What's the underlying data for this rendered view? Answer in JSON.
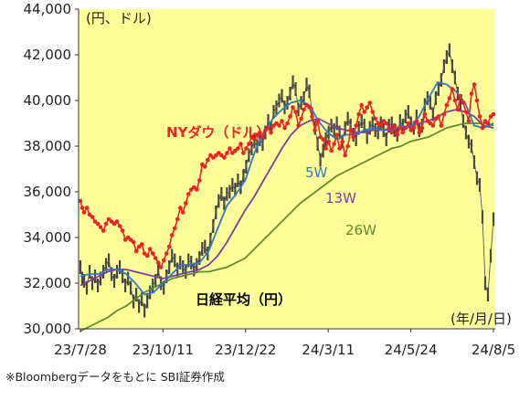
{
  "chart_data": {
    "type": "line",
    "title": "",
    "xlabel": "(年/月/日)",
    "ylabel": "(円、ドル)",
    "ylim": [
      30000,
      44000
    ],
    "yticks": [
      "30,000",
      "32,000",
      "34,000",
      "36,000",
      "38,000",
      "40,000",
      "42,000",
      "44,000"
    ],
    "xticks": [
      "23/7/28",
      "23/10/11",
      "23/12/22",
      "24/3/11",
      "24/5/24",
      "24/8/5"
    ],
    "background": "#ffff99",
    "grid": false,
    "annotations": {
      "nydow": "NYダウ（ドル）",
      "nikkei": "日経平均（円）",
      "w5": "5W",
      "w13": "13W",
      "w26": "26W"
    },
    "series": [
      {
        "name": "NYダウ（ドル）",
        "color": "#ee2222",
        "x": [
          0,
          2,
          4,
          7,
          10,
          13,
          16,
          19,
          22,
          25,
          28,
          31,
          34,
          37,
          40,
          43,
          46,
          49,
          52,
          55,
          58,
          61,
          64,
          67,
          70,
          73,
          76,
          79,
          82,
          85,
          88,
          91,
          94,
          97,
          100,
          103,
          106,
          109,
          112,
          115,
          118,
          121,
          124,
          127,
          130,
          133,
          136,
          139,
          142,
          145,
          148,
          151,
          154,
          157,
          160,
          163,
          166,
          169,
          172,
          175,
          178,
          181,
          184,
          187,
          190,
          193,
          196,
          199,
          202,
          205,
          208,
          211,
          214,
          217,
          220,
          223,
          226,
          229,
          232,
          235,
          238,
          241,
          244,
          247,
          250,
          253,
          256,
          259,
          262,
          265,
          268,
          271,
          274,
          277,
          280,
          283,
          286,
          289,
          292,
          295,
          298,
          301,
          304,
          307,
          310,
          313,
          316,
          319,
          322,
          325,
          328,
          331,
          334,
          337,
          340,
          343,
          346,
          349,
          352,
          355,
          358,
          361,
          364,
          367,
          370,
          373,
          376,
          379,
          382,
          385,
          388,
          391,
          394,
          397,
          400,
          403,
          406,
          409,
          412,
          415,
          418,
          421,
          424,
          427,
          430,
          433,
          436,
          439,
          442,
          445,
          448,
          451
        ],
        "values": [
          35600,
          35300,
          35100,
          35300,
          35000,
          34900,
          34700,
          34600,
          34450,
          34300,
          34600,
          34800,
          34700,
          34600,
          34700,
          34500,
          34300,
          33900,
          34000,
          33900,
          33800,
          33400,
          33600,
          33700,
          33300,
          33200,
          33500,
          33300,
          33100,
          32900,
          32700,
          33000,
          33300,
          33600,
          34100,
          34400,
          34800,
          35300,
          35100,
          35500,
          35900,
          36100,
          36200,
          36100,
          36500,
          37200,
          37100,
          37400,
          37600,
          37500,
          37600,
          37700,
          37600,
          37500,
          37700,
          37900,
          37700,
          37800,
          37900,
          38100,
          37700,
          37900,
          38100,
          38400,
          38300,
          38500,
          38600,
          38400,
          38700,
          38800,
          38600,
          38900,
          39000,
          38900,
          39100,
          38800,
          39000,
          39300,
          39700,
          39500,
          38900,
          39200,
          39600,
          39800,
          39700,
          39300,
          38700,
          39100,
          38400,
          38300,
          37900,
          38200,
          37800,
          38100,
          38500,
          37900,
          38200,
          37600,
          38000,
          38700,
          38400,
          38900,
          39400,
          39800,
          39500,
          39700,
          39900,
          39500,
          39200,
          39000,
          38900,
          39100,
          39000,
          38800,
          38600,
          38900,
          38500,
          38800,
          38600,
          38800,
          39000,
          38700,
          38800,
          39100,
          38600,
          38800,
          39400,
          39100,
          39000,
          38900,
          39200,
          39300,
          38900,
          39400,
          39800,
          40100,
          40500,
          40000,
          39600,
          40200,
          39900,
          39500,
          39100,
          40300,
          40700,
          40000,
          39300,
          38800,
          39100,
          39000,
          39300,
          39400
        ]
      },
      {
        "name": "日経平均（円）",
        "color": "#333333",
        "x": [
          0,
          2,
          4,
          7,
          10,
          13,
          16,
          19,
          22,
          25,
          28,
          31,
          34,
          37,
          40,
          43,
          46,
          49,
          52,
          55,
          58,
          61,
          64,
          67,
          70,
          73,
          76,
          79,
          82,
          85,
          88,
          91,
          94,
          97,
          100,
          103,
          106,
          109,
          112,
          115,
          118,
          121,
          124,
          127,
          130,
          133,
          136,
          139,
          142,
          145,
          148,
          151,
          154,
          157,
          160,
          163,
          166,
          169,
          172,
          175,
          178,
          181,
          184,
          187,
          190,
          193,
          196,
          199,
          202,
          205,
          208,
          211,
          214,
          217,
          220,
          223,
          226,
          229,
          232,
          235,
          238,
          241,
          244,
          247,
          250,
          253,
          256,
          259,
          262,
          265,
          268,
          271,
          274,
          277,
          280,
          283,
          286,
          289,
          292,
          295,
          298,
          301,
          304,
          307,
          310,
          313,
          316,
          319,
          322,
          325,
          328,
          331,
          334,
          337,
          340,
          343,
          346,
          349,
          352,
          355,
          358,
          361,
          364,
          367,
          370,
          373,
          376,
          379,
          382,
          385,
          388,
          391,
          394,
          397,
          400,
          403,
          406,
          409,
          412,
          415,
          418,
          421,
          424,
          427,
          430,
          433,
          436,
          439,
          442,
          445,
          448,
          451
        ],
        "values": [
          32700,
          32200,
          32100,
          31800,
          32500,
          32000,
          32300,
          31900,
          32200,
          32500,
          32800,
          33000,
          32400,
          32100,
          32500,
          32700,
          32300,
          31900,
          32200,
          31800,
          31200,
          31500,
          31000,
          31300,
          30800,
          31200,
          31600,
          31900,
          32100,
          32600,
          32000,
          31800,
          32300,
          32700,
          33200,
          33000,
          32600,
          32900,
          32700,
          32500,
          33000,
          32900,
          32600,
          32800,
          33100,
          33500,
          33600,
          33300,
          33900,
          34500,
          35100,
          35600,
          35900,
          35500,
          35900,
          36000,
          36300,
          36100,
          36500,
          36200,
          36700,
          37100,
          37600,
          37900,
          38200,
          38000,
          38300,
          38100,
          38600,
          39100,
          38800,
          39500,
          39700,
          40000,
          40200,
          39700,
          39900,
          40300,
          40800,
          40500,
          39600,
          39900,
          40100,
          40700,
          40400,
          39400,
          38800,
          38100,
          37400,
          37800,
          38300,
          38600,
          38900,
          38700,
          39000,
          38600,
          38200,
          38800,
          39200,
          38900,
          38500,
          38300,
          38800,
          39100,
          38900,
          38400,
          38800,
          39000,
          38700,
          38600,
          39000,
          38700,
          38300,
          38900,
          39000,
          38700,
          38500,
          39100,
          38900,
          39300,
          39500,
          39000,
          38800,
          39300,
          38700,
          38900,
          39800,
          40100,
          39900,
          39400,
          40100,
          40500,
          40900,
          41500,
          41900,
          42200,
          41500,
          41000,
          40300,
          39800,
          39100,
          38600,
          38200,
          38000,
          37300,
          36600,
          36300,
          34900,
          32000,
          31500,
          33200,
          34800
        ]
      },
      {
        "name": "5W",
        "color": "#2f78c4",
        "x": [
          0,
          10,
          20,
          30,
          40,
          50,
          60,
          70,
          80,
          90,
          100,
          110,
          120,
          130,
          140,
          150,
          160,
          170,
          180,
          190,
          200,
          210,
          220,
          230,
          240,
          250,
          260,
          270,
          280,
          290,
          300,
          310,
          320,
          330,
          340,
          350,
          360,
          370,
          380,
          390,
          400,
          410,
          420,
          430,
          440,
          451
        ],
        "values": [
          32300,
          32400,
          32400,
          32600,
          32600,
          32400,
          32000,
          31500,
          31600,
          32000,
          32400,
          32800,
          32800,
          32900,
          33400,
          34400,
          35400,
          35900,
          36500,
          37700,
          38600,
          39200,
          39600,
          39900,
          40000,
          39800,
          39100,
          38600,
          38300,
          38500,
          38500,
          38700,
          38800,
          38700,
          38700,
          38900,
          38800,
          39300,
          40100,
          40800,
          40700,
          40400,
          39900,
          38900,
          38800,
          39000
        ]
      },
      {
        "name": "13W",
        "color": "#7b3fa0",
        "x": [
          0,
          10,
          20,
          30,
          40,
          50,
          60,
          70,
          80,
          90,
          100,
          110,
          120,
          130,
          140,
          150,
          160,
          170,
          180,
          190,
          200,
          210,
          220,
          230,
          240,
          250,
          260,
          270,
          280,
          290,
          300,
          310,
          320,
          330,
          340,
          350,
          360,
          370,
          380,
          390,
          400,
          410,
          420,
          430,
          440,
          451
        ],
        "values": [
          31900,
          32100,
          32300,
          32500,
          32600,
          32600,
          32500,
          32400,
          32300,
          32200,
          32300,
          32400,
          32500,
          32600,
          32800,
          33200,
          33800,
          34500,
          35200,
          35800,
          36500,
          37200,
          37900,
          38500,
          38900,
          39100,
          39200,
          39000,
          38800,
          38700,
          38600,
          38600,
          38700,
          38700,
          38800,
          38800,
          38900,
          39000,
          39100,
          39300,
          39500,
          39600,
          39500,
          39300,
          38900,
          38800
        ]
      },
      {
        "name": "26W",
        "color": "#5e8a30",
        "x": [
          0,
          10,
          20,
          30,
          40,
          50,
          60,
          70,
          80,
          90,
          100,
          110,
          120,
          130,
          140,
          150,
          160,
          170,
          180,
          190,
          200,
          210,
          220,
          230,
          240,
          250,
          260,
          270,
          280,
          290,
          300,
          310,
          320,
          330,
          340,
          350,
          360,
          370,
          380,
          390,
          400,
          410,
          420,
          430,
          440,
          451
        ],
        "values": [
          29900,
          30100,
          30300,
          30500,
          30800,
          31000,
          31300,
          31600,
          31800,
          32000,
          32200,
          32300,
          32400,
          32500,
          32500,
          32600,
          32700,
          32900,
          33100,
          33500,
          33900,
          34300,
          34700,
          35100,
          35500,
          35800,
          36100,
          36400,
          36700,
          36900,
          37100,
          37300,
          37500,
          37700,
          37900,
          38000,
          38200,
          38300,
          38400,
          38600,
          38800,
          38900,
          39000,
          39000,
          39000,
          38900
        ]
      }
    ]
  },
  "source_note": "※Bloombergデータをもとに SBI証券作成"
}
